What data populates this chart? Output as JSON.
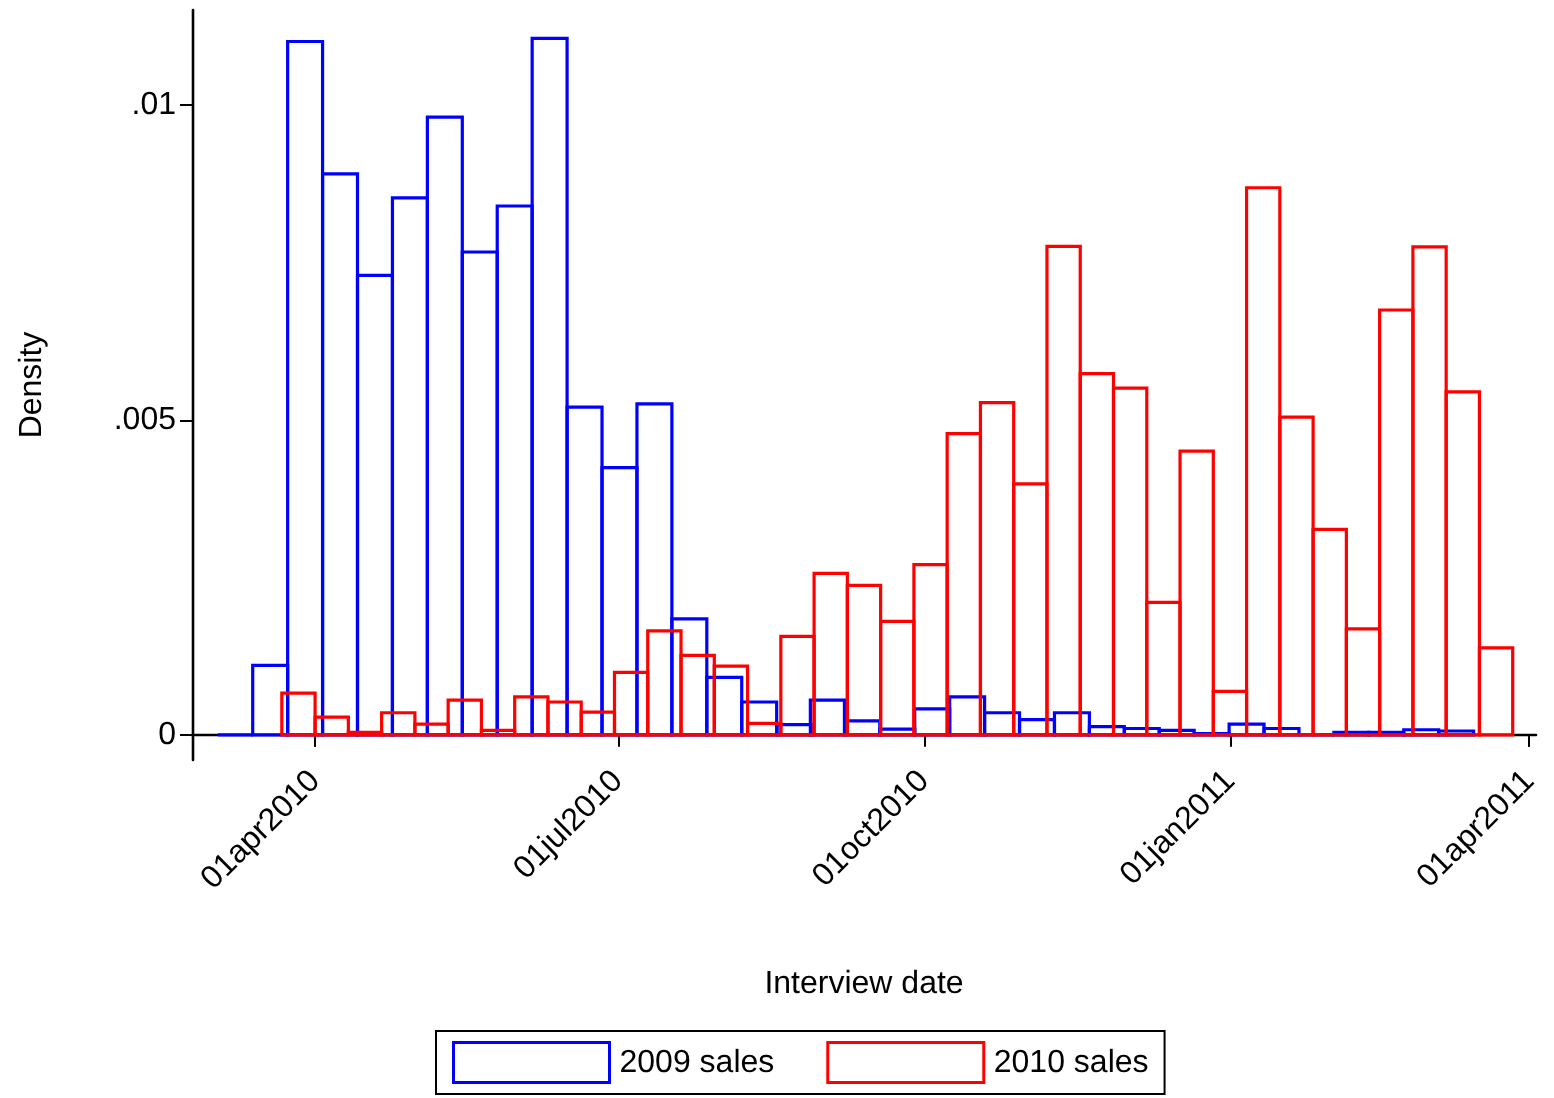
{
  "chart_data": {
    "type": "bar",
    "xlabel": "Interview date",
    "ylabel": "Density",
    "xlim": [
      "2010-02-23",
      "2011-04-03"
    ],
    "ylim": [
      -0.0004,
      0.0115
    ],
    "xticks": [
      {
        "value": "2010-04-01",
        "label": "01apr2010"
      },
      {
        "value": "2010-07-01",
        "label": "01jul2010"
      },
      {
        "value": "2010-10-01",
        "label": "01oct2010"
      },
      {
        "value": "2011-01-01",
        "label": "01jan2011"
      },
      {
        "value": "2011-04-01",
        "label": "01apr2011"
      }
    ],
    "yticks": [
      0,
      {
        "value": 0.005,
        "label": ".005"
      },
      {
        "value": 0.01,
        "label": ".01"
      }
    ],
    "grid": false,
    "legend": "bottom",
    "series": [
      {
        "name": "2009 sales",
        "color": "#0000ff",
        "x": [
          "2010-03-08",
          "2010-03-18T12:00",
          "2010-03-29",
          "2010-04-08T12:00",
          "2010-04-19",
          "2010-04-29T12:00",
          "2010-05-10",
          "2010-05-20T12:00",
          "2010-05-31",
          "2010-06-10T12:00",
          "2010-06-21",
          "2010-07-01T12:00",
          "2010-07-12",
          "2010-07-22T12:00",
          "2010-08-02",
          "2010-08-12T12:00",
          "2010-08-23",
          "2010-09-02",
          "2010-09-12T12:00",
          "2010-09-23",
          "2010-10-03T12:00",
          "2010-10-14",
          "2010-10-24T12:00",
          "2010-11-04",
          "2010-11-14T12:00",
          "2010-11-25",
          "2010-12-05T12:00",
          "2010-12-16",
          "2010-12-26T12:00",
          "2011-01-06",
          "2011-01-16T12:00",
          "2011-01-27",
          "2011-02-06T12:00",
          "2011-02-17",
          "2011-02-27T12:00",
          "2011-03-10"
        ],
        "values": [
          0,
          0.0011,
          0.011,
          0.0089,
          0.00729,
          0.00852,
          0.0098,
          0.00766,
          0.00839,
          0.01105,
          0.0052,
          0.00424,
          0.00525,
          0.00184,
          0.00091,
          0.00052,
          0.00016,
          0.00055,
          0.00022,
          9e-05,
          0.00041,
          0.0006,
          0.00035,
          0.00024,
          0.00035,
          0.00013,
          0.0001,
          7e-05,
          2e-05,
          0.00017,
          0.0001,
          0,
          4e-05,
          4e-05,
          8e-05,
          6e-05
        ]
      },
      {
        "name": "2010 sales",
        "color": "#ff0000",
        "x": [
          "2010-03-27",
          "2010-04-06",
          "2010-04-16",
          "2010-04-26",
          "2010-05-06",
          "2010-05-16",
          "2010-05-26",
          "2010-06-05",
          "2010-06-15",
          "2010-06-25",
          "2010-07-05",
          "2010-07-15",
          "2010-07-25",
          "2010-08-04",
          "2010-08-14",
          "2010-08-24",
          "2010-09-03",
          "2010-09-13",
          "2010-09-23",
          "2010-10-03",
          "2010-10-13",
          "2010-10-23",
          "2010-11-02",
          "2010-11-12",
          "2010-11-22",
          "2010-12-02",
          "2010-12-12",
          "2010-12-22",
          "2011-01-01",
          "2011-01-11",
          "2011-01-21",
          "2011-01-31",
          "2011-02-10",
          "2011-02-20",
          "2011-03-02",
          "2011-03-12",
          "2011-03-22"
        ],
        "values": [
          0.00066,
          0.00028,
          4e-05,
          0.00035,
          0.00017,
          0.00055,
          7e-05,
          0.0006,
          0.00052,
          0.00036,
          0.00099,
          0.00165,
          0.00126,
          0.00109,
          0.00018,
          0.00156,
          0.00256,
          0.00237,
          0.0018,
          0.0027,
          0.00478,
          0.00527,
          0.00398,
          0.00775,
          0.00573,
          0.0055,
          0.0021,
          0.0045,
          0.00069,
          0.00868,
          0.00504,
          0.00326,
          0.00168,
          0.00674,
          0.00774,
          0.00544,
          0.00138
        ]
      }
    ]
  }
}
